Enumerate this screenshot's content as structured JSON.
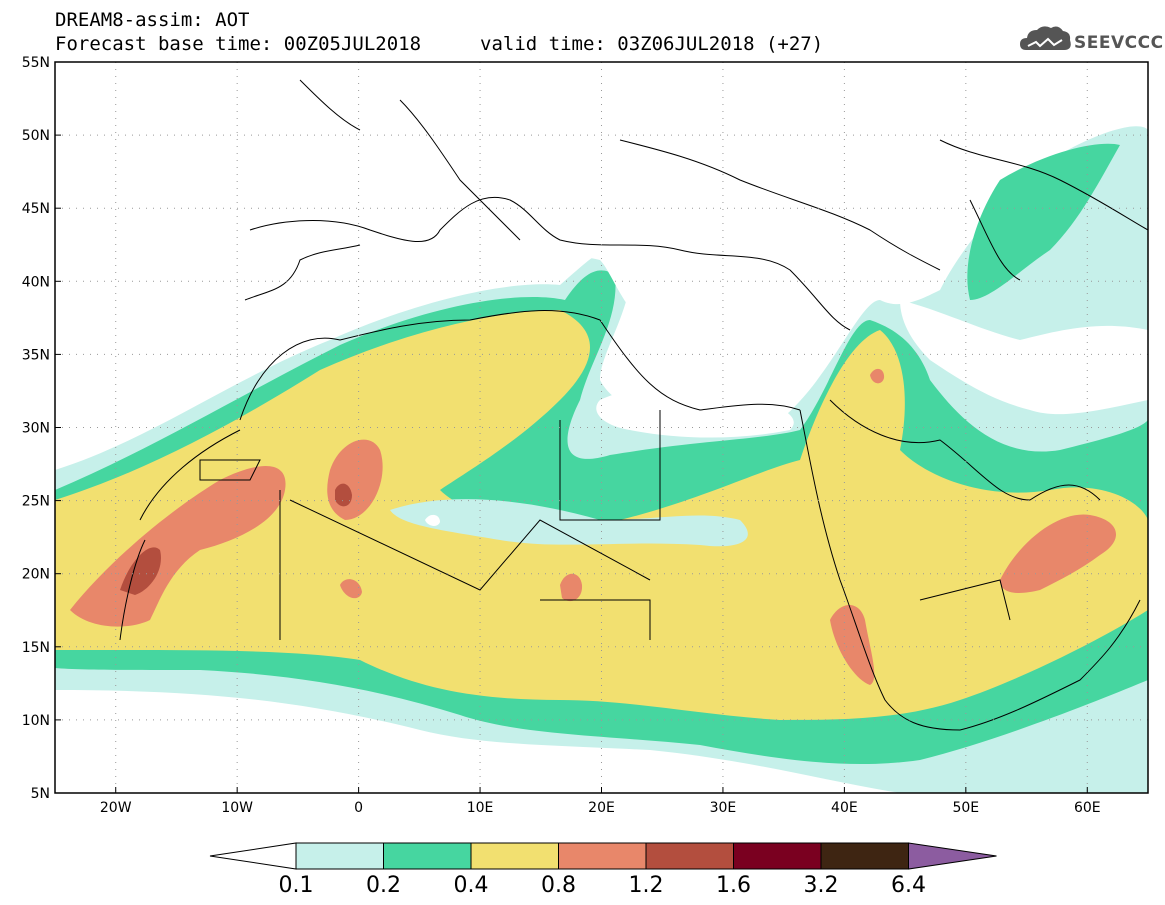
{
  "header": {
    "line1": "DREAM8-assim: AOT",
    "line2_left": "Forecast base time: 00Z05JUL2018",
    "line2_right": "valid time: 03Z06JUL2018 (+27)"
  },
  "logo": {
    "text": "SEEVCCC",
    "icon": "cloud-logo-icon"
  },
  "map": {
    "lon_range": [
      -25,
      65
    ],
    "lat_range": [
      5,
      55
    ],
    "x_ticks": [
      "20W",
      "10W",
      "0",
      "10E",
      "20E",
      "30E",
      "40E",
      "50E",
      "60E"
    ],
    "x_tick_values": [
      -20,
      -10,
      0,
      10,
      20,
      30,
      40,
      50,
      60
    ],
    "y_ticks": [
      "5N",
      "10N",
      "15N",
      "20N",
      "25N",
      "30N",
      "35N",
      "40N",
      "45N",
      "50N",
      "55N"
    ],
    "y_tick_values": [
      5,
      10,
      15,
      20,
      25,
      30,
      35,
      40,
      45,
      50,
      55
    ],
    "grid": "dotted",
    "quantity": "Aerosol Optical Thickness"
  },
  "colorbar": {
    "labels": [
      "0.1",
      "0.2",
      "0.4",
      "0.8",
      "1.2",
      "1.6",
      "3.2",
      "6.4"
    ],
    "colors": [
      "#ffffff",
      "#c6f0ea",
      "#46d6a0",
      "#f2e070",
      "#e8876a",
      "#b34e3e",
      "#7a0020",
      "#3e2512",
      "#8c5ca0"
    ]
  }
}
